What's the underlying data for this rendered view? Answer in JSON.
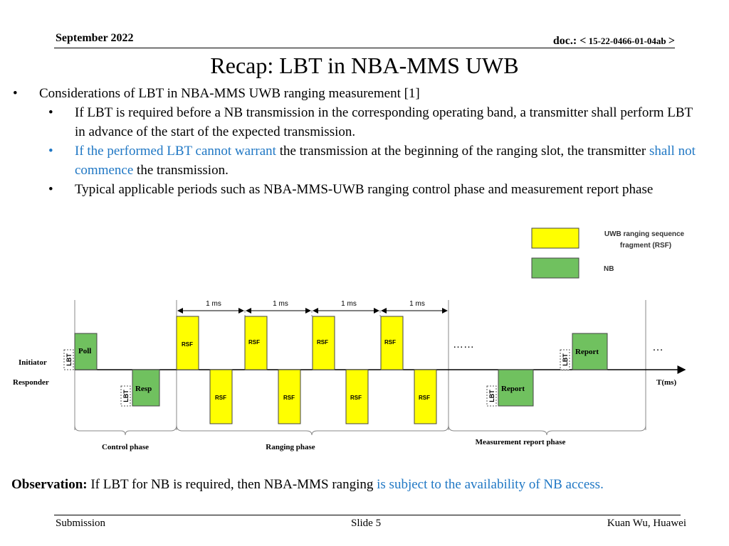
{
  "header": {
    "date": "September 2022",
    "doc_prefix": "doc.: <",
    "doc_number": " 15-22-0466-01-04ab ",
    "doc_suffix": ">"
  },
  "title": "Recap: LBT in NBA-MMS UWB",
  "bullets": {
    "main": "Considerations of LBT in NBA-MMS UWB ranging measurement [1]",
    "sub1": "If  LBT is required before a NB transmission in the corresponding operating band, a transmitter shall perform LBT in advance of the start of the expected transmission.",
    "sub2_part1": "If the performed LBT cannot warrant",
    "sub2_part2": " the transmission at the beginning of the ranging slot, the transmitter ",
    "sub2_part3": "shall not commence",
    "sub2_part4": " the transmission.",
    "sub3": "Typical applicable periods such as NBA-MMS-UWB ranging control phase and measurement report phase"
  },
  "legend": {
    "rsf_line1": "UWB ranging sequence",
    "rsf_line2": "fragment (RSF)",
    "nb": "NB"
  },
  "diagram": {
    "initiator": "Initiator",
    "responder": "Responder",
    "axis": "T(ms)",
    "interval": "1 ms",
    "poll": "Poll",
    "resp": "Resp",
    "report": "Report",
    "rsf": "RSF",
    "lbt": "LBT",
    "dots_mid": "……",
    "dots_end": "…",
    "phase_control": "Control phase",
    "phase_ranging": "Ranging phase",
    "phase_report": "Measurement report phase"
  },
  "colors": {
    "rsf": "#ffff00",
    "nb": "#70c15f",
    "highlight": "#1f77c4"
  },
  "observation": {
    "label": "Observation:",
    "text1": " If  LBT for NB is required, then NBA-MMS ranging ",
    "text2": "is subject to the availability of NB access."
  },
  "footer": {
    "left": "Submission",
    "center": "Slide 5",
    "right": "Kuan Wu, Huawei"
  }
}
